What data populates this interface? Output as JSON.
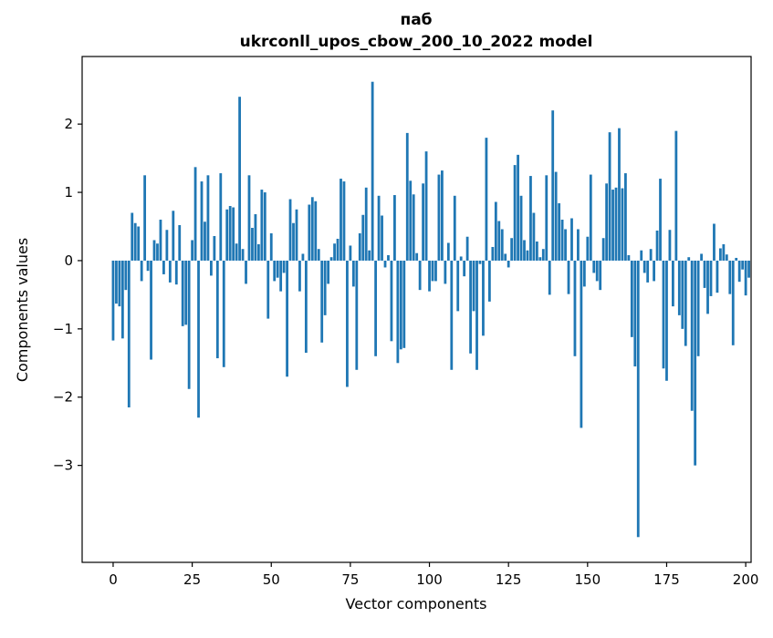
{
  "figure": {
    "title": "паб",
    "subtitle": "ukrconll_upos_cbow_200_10_2022 model"
  },
  "chart_data": {
    "type": "bar",
    "title": "паб",
    "subtitle": "ukrconll_upos_cbow_200_10_2022 model",
    "xlabel": "Vector components",
    "ylabel": "Components values",
    "bar_color": "#1f77b4",
    "grid": false,
    "legend": "none",
    "x_start_index": 0,
    "x_tick_values": [
      0,
      25,
      50,
      75,
      100,
      125,
      150,
      175,
      200
    ],
    "x_tick_labels": [
      "0",
      "25",
      "50",
      "75",
      "100",
      "125",
      "150",
      "175",
      "200"
    ],
    "y_tick_values": [
      2,
      1,
      0,
      -1,
      -2,
      -3
    ],
    "y_tick_labels": [
      "2",
      "1",
      "0",
      "−1",
      "−2",
      "−3"
    ],
    "xlim": [
      -9.8,
      201.7
    ],
    "ylim": [
      -4.42,
      2.99
    ],
    "values": [
      -1.17,
      -0.63,
      -0.67,
      -1.14,
      -0.43,
      -2.15,
      0.7,
      0.55,
      0.5,
      -0.3,
      1.25,
      -0.15,
      -1.45,
      0.3,
      0.25,
      0.6,
      -0.2,
      0.45,
      -0.32,
      0.73,
      -0.35,
      0.52,
      -0.96,
      -0.94,
      -1.88,
      0.3,
      1.37,
      -2.3,
      1.16,
      0.57,
      1.25,
      -0.22,
      0.36,
      -1.43,
      1.28,
      -1.56,
      0.75,
      0.8,
      0.78,
      0.25,
      2.4,
      0.17,
      -0.34,
      1.25,
      0.48,
      0.68,
      0.24,
      1.04,
      1.0,
      -0.85,
      0.4,
      -0.3,
      -0.25,
      -0.45,
      -0.18,
      -1.7,
      0.9,
      0.55,
      0.75,
      -0.45,
      0.1,
      -1.35,
      0.82,
      0.93,
      0.87,
      0.17,
      -1.2,
      -0.8,
      -0.34,
      0.05,
      0.25,
      0.32,
      1.2,
      1.16,
      -1.85,
      0.22,
      -0.38,
      -1.6,
      0.4,
      0.67,
      1.07,
      0.15,
      2.62,
      -1.4,
      0.95,
      0.66,
      -0.1,
      0.08,
      -1.18,
      0.96,
      -1.5,
      -1.3,
      -1.28,
      1.87,
      1.17,
      0.97,
      0.11,
      -0.43,
      1.13,
      1.6,
      -0.45,
      -0.3,
      -0.3,
      1.26,
      1.32,
      -0.34,
      0.26,
      -1.6,
      0.95,
      -0.74,
      0.06,
      -0.23,
      0.35,
      -1.36,
      -0.74,
      -1.6,
      -0.05,
      -1.1,
      1.8,
      -0.6,
      0.2,
      0.86,
      0.58,
      0.46,
      0.1,
      -0.1,
      0.33,
      1.4,
      1.55,
      0.95,
      0.3,
      0.15,
      1.24,
      0.7,
      0.28,
      0.05,
      0.17,
      1.25,
      -0.5,
      2.2,
      1.3,
      0.84,
      0.6,
      0.46,
      -0.49,
      0.62,
      -1.4,
      0.46,
      -2.45,
      -0.38,
      0.35,
      1.26,
      -0.18,
      -0.3,
      -0.43,
      0.33,
      1.13,
      1.88,
      1.04,
      1.07,
      1.94,
      1.06,
      1.28,
      0.08,
      -1.12,
      -1.55,
      -4.05,
      0.15,
      -0.18,
      -0.32,
      0.17,
      -0.3,
      0.44,
      1.2,
      -1.58,
      -1.76,
      0.45,
      -0.67,
      1.9,
      -0.8,
      -1.0,
      -1.25,
      0.05,
      -2.2,
      -3.0,
      -1.4,
      0.1,
      -0.4,
      -0.78,
      -0.52,
      0.54,
      -0.47,
      0.18,
      0.24,
      0.09,
      -0.49,
      -1.24,
      0.04,
      -0.31,
      -0.13,
      -0.51,
      -0.25
    ]
  }
}
